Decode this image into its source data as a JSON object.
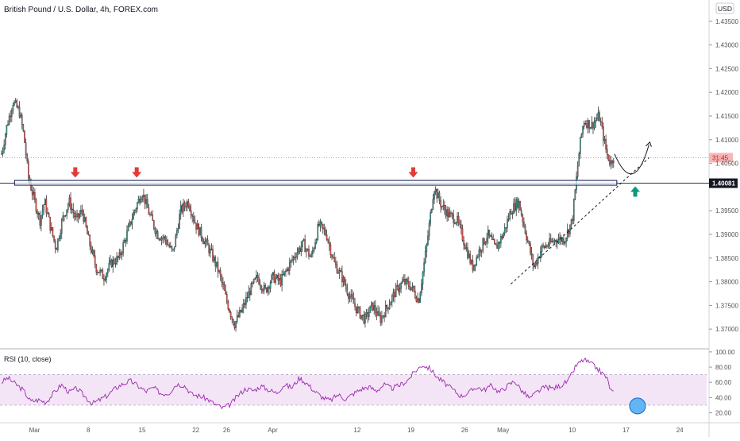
{
  "header": {
    "title": "British Pound / U.S. Dollar, 4h, FOREX.com",
    "currency_badge": "USD"
  },
  "colors": {
    "up": "#26a69a",
    "down": "#ef5350",
    "wick": "#333333",
    "rsi_line": "#9c27b0",
    "rsi_band": "#f3e5f5",
    "arrow_down": "#e53935",
    "arrow_up": "#089981",
    "circle": "#64b5f6",
    "grid_text": "#555555"
  },
  "chart_data": [
    {
      "type": "candlestick",
      "title": "British Pound / U.S. Dollar, 4h, FOREX.com",
      "ylim": [
        1.366,
        1.4395
      ],
      "y_ticks": [
        "1.43500",
        "1.43000",
        "1.42500",
        "1.42000",
        "1.41500",
        "1.41000",
        "1.40500",
        "1.39500",
        "1.39000",
        "1.38500",
        "1.38000",
        "1.37500",
        "1.37000"
      ],
      "y_tick_values": [
        1.435,
        1.43,
        1.425,
        1.42,
        1.415,
        1.41,
        1.405,
        1.395,
        1.39,
        1.385,
        1.38,
        1.375,
        1.37
      ],
      "x_ticks": [
        "Mar",
        "8",
        "15",
        "22",
        "26",
        "Apr",
        "12",
        "19",
        "26",
        "May",
        "10",
        "17",
        "24"
      ],
      "x_tick_days": [
        0,
        7,
        14,
        21,
        25,
        31,
        42,
        49,
        56,
        61,
        70,
        77,
        84
      ],
      "xlim_days": [
        -4.5,
        87.5
      ],
      "price_waypoints": [
        [
          -4.3,
          1.407
        ],
        [
          -3.6,
          1.413
        ],
        [
          -2.8,
          1.418
        ],
        [
          -2.0,
          1.416
        ],
        [
          -1.4,
          1.411
        ],
        [
          -0.8,
          1.402
        ],
        [
          0.0,
          1.397
        ],
        [
          0.7,
          1.393
        ],
        [
          1.3,
          1.397
        ],
        [
          2.0,
          1.392
        ],
        [
          2.8,
          1.387
        ],
        [
          3.6,
          1.393
        ],
        [
          4.5,
          1.397
        ],
        [
          5.4,
          1.393
        ],
        [
          6.2,
          1.395
        ],
        [
          7.0,
          1.389
        ],
        [
          8.0,
          1.383
        ],
        [
          9.0,
          1.381
        ],
        [
          10.0,
          1.384
        ],
        [
          11.0,
          1.385
        ],
        [
          12.0,
          1.39
        ],
        [
          13.0,
          1.395
        ],
        [
          14.0,
          1.399
        ],
        [
          15.0,
          1.394
        ],
        [
          16.0,
          1.39
        ],
        [
          17.0,
          1.389
        ],
        [
          18.0,
          1.386
        ],
        [
          19.0,
          1.395
        ],
        [
          20.0,
          1.397
        ],
        [
          21.0,
          1.392
        ],
        [
          22.0,
          1.389
        ],
        [
          23.0,
          1.386
        ],
        [
          24.0,
          1.382
        ],
        [
          25.0,
          1.376
        ],
        [
          26.0,
          1.371
        ],
        [
          27.0,
          1.374
        ],
        [
          28.0,
          1.378
        ],
        [
          29.0,
          1.381
        ],
        [
          30.0,
          1.378
        ],
        [
          31.0,
          1.381
        ],
        [
          32.0,
          1.38
        ],
        [
          33.0,
          1.383
        ],
        [
          34.0,
          1.386
        ],
        [
          35.0,
          1.388
        ],
        [
          36.0,
          1.385
        ],
        [
          37.0,
          1.392
        ],
        [
          38.0,
          1.39
        ],
        [
          39.0,
          1.384
        ],
        [
          40.0,
          1.381
        ],
        [
          41.0,
          1.377
        ],
        [
          42.0,
          1.374
        ],
        [
          43.0,
          1.372
        ],
        [
          44.0,
          1.375
        ],
        [
          45.0,
          1.372
        ],
        [
          46.0,
          1.375
        ],
        [
          47.0,
          1.378
        ],
        [
          48.0,
          1.38
        ],
        [
          49.0,
          1.379
        ],
        [
          50.0,
          1.376
        ],
        [
          51.0,
          1.387
        ],
        [
          52.0,
          1.4
        ],
        [
          53.0,
          1.396
        ],
        [
          54.0,
          1.394
        ],
        [
          55.0,
          1.393
        ],
        [
          56.0,
          1.388
        ],
        [
          57.0,
          1.383
        ],
        [
          58.0,
          1.387
        ],
        [
          59.0,
          1.39
        ],
        [
          60.0,
          1.387
        ],
        [
          61.0,
          1.39
        ],
        [
          62.0,
          1.395
        ],
        [
          63.0,
          1.397
        ],
        [
          64.0,
          1.39
        ],
        [
          65.0,
          1.383
        ],
        [
          66.0,
          1.387
        ],
        [
          67.0,
          1.388
        ],
        [
          68.0,
          1.389
        ],
        [
          69.0,
          1.389
        ],
        [
          70.0,
          1.393
        ],
        [
          70.5,
          1.401
        ],
        [
          71.0,
          1.409
        ],
        [
          71.5,
          1.414
        ],
        [
          72.5,
          1.413
        ],
        [
          73.5,
          1.415
        ],
        [
          74.0,
          1.411
        ],
        [
          74.5,
          1.407
        ],
        [
          75.0,
          1.405
        ],
        [
          75.5,
          1.407
        ]
      ],
      "annotations": {
        "resistance_level": 1.40081,
        "resistance_label": "1.40081",
        "last_price_tag": "31:45",
        "last_price": 1.4062,
        "trendline": {
          "from": [
            62.0,
            1.3795
          ],
          "to": [
            80.0,
            1.4062
          ]
        },
        "projection": {
          "from": [
            75.5,
            1.407
          ],
          "via": [
            78.0,
            1.401
          ],
          "to": [
            80.0,
            1.409
          ]
        },
        "down_arrows_days": [
          5.3,
          13.3,
          49.3
        ],
        "up_arrow_day": 78.2
      }
    },
    {
      "type": "line",
      "title": "RSI (10, close)",
      "ylim": [
        8,
        103
      ],
      "y_ticks": [
        "100.00",
        "80.00",
        "60.00",
        "40.00",
        "20.00"
      ],
      "y_tick_values": [
        100,
        80,
        60,
        40,
        20
      ],
      "band": [
        30,
        70
      ],
      "rsi_waypoints": [
        [
          -4.3,
          60
        ],
        [
          -3.5,
          66
        ],
        [
          -2.5,
          58
        ],
        [
          -1.5,
          50
        ],
        [
          -0.5,
          35
        ],
        [
          0.5,
          37
        ],
        [
          1.5,
          34
        ],
        [
          2.5,
          46
        ],
        [
          3.5,
          57
        ],
        [
          4.5,
          47
        ],
        [
          5.5,
          52
        ],
        [
          6.5,
          42
        ],
        [
          7.5,
          32
        ],
        [
          8.5,
          37
        ],
        [
          9.5,
          43
        ],
        [
          10.5,
          52
        ],
        [
          11.5,
          58
        ],
        [
          12.5,
          62
        ],
        [
          13.5,
          55
        ],
        [
          14.5,
          48
        ],
        [
          15.5,
          53
        ],
        [
          16.5,
          45
        ],
        [
          17.5,
          46
        ],
        [
          18.5,
          58
        ],
        [
          19.5,
          56
        ],
        [
          20.5,
          44
        ],
        [
          21.5,
          42
        ],
        [
          22.5,
          38
        ],
        [
          23.5,
          31
        ],
        [
          24.5,
          26
        ],
        [
          25.5,
          31
        ],
        [
          26.5,
          43
        ],
        [
          27.5,
          52
        ],
        [
          28.5,
          49
        ],
        [
          29.5,
          55
        ],
        [
          30.5,
          50
        ],
        [
          31.5,
          46
        ],
        [
          32.5,
          57
        ],
        [
          33.5,
          53
        ],
        [
          34.5,
          66
        ],
        [
          35.5,
          58
        ],
        [
          36.5,
          48
        ],
        [
          37.5,
          40
        ],
        [
          38.5,
          36
        ],
        [
          39.5,
          44
        ],
        [
          40.5,
          38
        ],
        [
          41.5,
          45
        ],
        [
          42.5,
          51
        ],
        [
          43.5,
          54
        ],
        [
          44.5,
          49
        ],
        [
          45.5,
          57
        ],
        [
          46.5,
          52
        ],
        [
          47.5,
          56
        ],
        [
          48.5,
          62
        ],
        [
          49.5,
          74
        ],
        [
          50.5,
          83
        ],
        [
          51.5,
          78
        ],
        [
          52.5,
          66
        ],
        [
          53.5,
          58
        ],
        [
          54.5,
          50
        ],
        [
          55.5,
          42
        ],
        [
          56.5,
          46
        ],
        [
          57.5,
          54
        ],
        [
          58.5,
          50
        ],
        [
          59.5,
          56
        ],
        [
          60.5,
          47
        ],
        [
          61.5,
          55
        ],
        [
          62.5,
          62
        ],
        [
          63.5,
          48
        ],
        [
          64.5,
          39
        ],
        [
          65.5,
          48
        ],
        [
          66.5,
          54
        ],
        [
          67.5,
          52
        ],
        [
          68.5,
          56
        ],
        [
          69.5,
          62
        ],
        [
          70.5,
          82
        ],
        [
          71.5,
          90
        ],
        [
          72.5,
          84
        ],
        [
          73.5,
          76
        ],
        [
          74.5,
          66
        ],
        [
          75.0,
          50
        ],
        [
          75.5,
          45
        ]
      ],
      "highlight_value": 40
    }
  ]
}
